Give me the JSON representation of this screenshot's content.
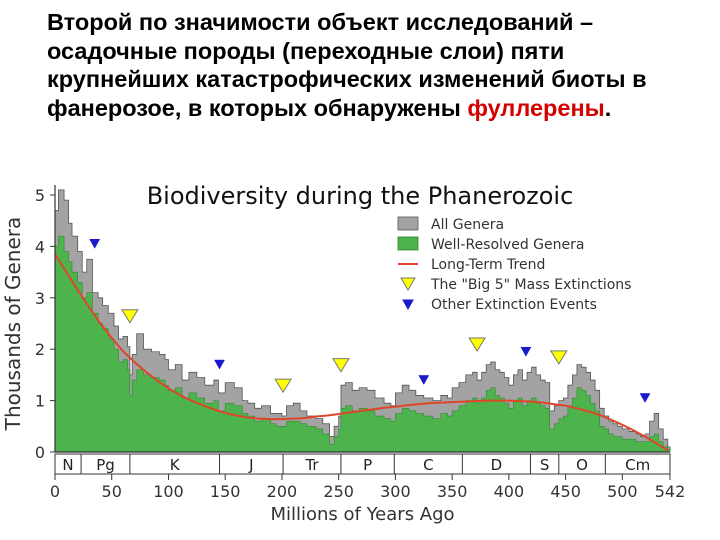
{
  "heading": {
    "text": "Второй по значимости объект исследований – осадочные породы (переходные  слои) пяти крупнейших катастрофических изменений биоты в фанерозое, в которых обнаружены ",
    "highlight": "фуллерены",
    "tail": "."
  },
  "colors": {
    "all_genera": "#a3a3a3",
    "well_resolved": "#4db34d",
    "trend": "#e0452a",
    "big5": "#ffff00",
    "other": "#1a1acc"
  },
  "chart_data": {
    "type": "area",
    "title": "Biodiversity during the Phanerozoic",
    "xlabel": "Millions of Years Ago",
    "ylabel": "Thousands of Genera",
    "xlim": [
      0,
      542
    ],
    "ylim": [
      0,
      5
    ],
    "x_ticks": [
      "0",
      "50",
      "100",
      "150",
      "200",
      "250",
      "300",
      "350",
      "400",
      "450",
      "500",
      "542"
    ],
    "y_ticks": [
      "0",
      "1",
      "2",
      "3",
      "4",
      "5"
    ],
    "legend": [
      {
        "key": "all",
        "label": "All Genera"
      },
      {
        "key": "well",
        "label": "Well-Resolved Genera"
      },
      {
        "key": "trend",
        "label": "Long-Term Trend"
      },
      {
        "key": "big5",
        "label": "The \"Big 5\" Mass Extinctions"
      },
      {
        "key": "other",
        "label": "Other Extinction Events"
      }
    ],
    "periods": [
      {
        "label": "N",
        "start": 0,
        "end": 23
      },
      {
        "label": "Pg",
        "start": 23,
        "end": 66
      },
      {
        "label": "K",
        "start": 66,
        "end": 145
      },
      {
        "label": "J",
        "start": 145,
        "end": 201
      },
      {
        "label": "Tr",
        "start": 201,
        "end": 252
      },
      {
        "label": "P",
        "start": 252,
        "end": 299
      },
      {
        "label": "C",
        "start": 299,
        "end": 359
      },
      {
        "label": "D",
        "start": 359,
        "end": 419
      },
      {
        "label": "S",
        "start": 419,
        "end": 444
      },
      {
        "label": "O",
        "start": 444,
        "end": 485
      },
      {
        "label": "Cm",
        "start": 485,
        "end": 542
      }
    ],
    "series": [
      {
        "name": "All Genera",
        "x": [
          0,
          3,
          8,
          12,
          15,
          20,
          24,
          28,
          33,
          38,
          42,
          47,
          52,
          56,
          60,
          64,
          66,
          68,
          72,
          78,
          85,
          92,
          97,
          100,
          106,
          112,
          118,
          125,
          132,
          140,
          144,
          150,
          158,
          165,
          170,
          176,
          182,
          190,
          195,
          200,
          204,
          210,
          216,
          222,
          230,
          236,
          242,
          246,
          250,
          252,
          256,
          262,
          268,
          275,
          282,
          290,
          296,
          300,
          306,
          312,
          318,
          325,
          333,
          340,
          346,
          350,
          356,
          362,
          368,
          372,
          376,
          380,
          384,
          388,
          392,
          396,
          400,
          404,
          408,
          412,
          416,
          420,
          424,
          428,
          432,
          436,
          440,
          444,
          448,
          452,
          456,
          460,
          464,
          468,
          472,
          476,
          480,
          484,
          488,
          492,
          496,
          500,
          506,
          512,
          516,
          520,
          524,
          528,
          532,
          536,
          540,
          542
        ],
        "y": [
          4.7,
          5.1,
          4.9,
          4.45,
          4.2,
          3.9,
          3.5,
          3.75,
          3.1,
          3.0,
          2.85,
          2.7,
          2.45,
          2.2,
          2.25,
          2.05,
          1.5,
          1.9,
          2.3,
          2.0,
          1.95,
          1.9,
          1.8,
          1.6,
          1.7,
          1.4,
          1.55,
          1.45,
          1.3,
          1.4,
          1.15,
          1.35,
          1.25,
          1.0,
          0.95,
          0.85,
          0.9,
          0.75,
          0.75,
          0.7,
          0.9,
          0.95,
          0.8,
          0.7,
          0.65,
          0.55,
          0.3,
          0.5,
          0.7,
          1.3,
          1.35,
          1.2,
          1.25,
          1.2,
          1.05,
          0.95,
          0.9,
          1.15,
          1.3,
          1.2,
          1.1,
          1.05,
          1.0,
          1.1,
          1.05,
          1.25,
          1.35,
          1.5,
          1.55,
          1.4,
          1.55,
          1.7,
          1.75,
          1.6,
          1.55,
          1.45,
          1.3,
          1.5,
          1.6,
          1.4,
          1.55,
          1.65,
          1.5,
          1.4,
          1.35,
          0.8,
          0.9,
          1.0,
          1.05,
          1.3,
          1.5,
          1.7,
          1.65,
          1.55,
          1.4,
          1.2,
          0.85,
          0.7,
          0.6,
          0.55,
          0.5,
          0.45,
          0.4,
          0.35,
          0.3,
          0.35,
          0.6,
          0.75,
          0.45,
          0.25,
          0.1,
          0.0
        ]
      },
      {
        "name": "Well-Resolved Genera",
        "x": [
          0,
          3,
          8,
          12,
          15,
          20,
          24,
          28,
          33,
          38,
          42,
          47,
          52,
          56,
          60,
          64,
          66,
          68,
          72,
          78,
          85,
          92,
          97,
          100,
          106,
          112,
          118,
          125,
          132,
          140,
          144,
          150,
          158,
          165,
          170,
          176,
          182,
          190,
          195,
          200,
          204,
          210,
          216,
          222,
          230,
          236,
          242,
          246,
          250,
          252,
          256,
          262,
          268,
          275,
          282,
          290,
          296,
          300,
          306,
          312,
          318,
          325,
          333,
          340,
          346,
          350,
          356,
          362,
          368,
          372,
          376,
          380,
          384,
          388,
          392,
          396,
          400,
          404,
          408,
          412,
          416,
          420,
          424,
          428,
          432,
          436,
          440,
          444,
          448,
          452,
          456,
          460,
          464,
          468,
          472,
          476,
          480,
          484,
          488,
          492,
          496,
          500,
          506,
          512,
          516,
          520,
          524,
          528,
          532,
          536,
          540,
          542
        ],
        "y": [
          4.0,
          4.2,
          3.9,
          3.7,
          3.5,
          3.3,
          3.0,
          3.1,
          2.7,
          2.5,
          2.4,
          2.2,
          2.0,
          1.75,
          1.8,
          1.6,
          1.1,
          1.4,
          1.6,
          1.5,
          1.45,
          1.4,
          1.3,
          1.2,
          1.25,
          1.05,
          1.15,
          1.05,
          0.95,
          1.0,
          0.8,
          0.95,
          0.9,
          0.75,
          0.7,
          0.6,
          0.65,
          0.55,
          0.5,
          0.5,
          0.6,
          0.6,
          0.55,
          0.5,
          0.45,
          0.35,
          0.15,
          0.3,
          0.45,
          0.85,
          0.9,
          0.8,
          0.85,
          0.8,
          0.7,
          0.65,
          0.6,
          0.75,
          0.85,
          0.8,
          0.75,
          0.7,
          0.65,
          0.75,
          0.7,
          0.8,
          0.9,
          1.0,
          1.05,
          0.95,
          1.05,
          1.2,
          1.25,
          1.1,
          1.05,
          0.95,
          0.85,
          1.0,
          1.05,
          0.9,
          1.0,
          1.05,
          0.95,
          0.9,
          0.85,
          0.45,
          0.55,
          0.65,
          0.7,
          0.9,
          1.05,
          1.25,
          1.2,
          1.1,
          0.95,
          0.8,
          0.5,
          0.45,
          0.35,
          0.3,
          0.3,
          0.25,
          0.25,
          0.2,
          0.2,
          0.2,
          0.3,
          0.35,
          0.2,
          0.1,
          0.05,
          0.0
        ]
      },
      {
        "name": "Long-Term Trend",
        "x": [
          0,
          10,
          20,
          30,
          40,
          50,
          60,
          70,
          80,
          90,
          100,
          110,
          120,
          130,
          140,
          150,
          160,
          170,
          180,
          190,
          200,
          210,
          220,
          230,
          240,
          250,
          260,
          270,
          280,
          290,
          300,
          310,
          320,
          330,
          340,
          350,
          360,
          370,
          380,
          390,
          400,
          410,
          420,
          430,
          440,
          450,
          460,
          470,
          480,
          490,
          500,
          510,
          520,
          530,
          540
        ],
        "y": [
          3.85,
          3.5,
          3.15,
          2.82,
          2.5,
          2.22,
          1.96,
          1.75,
          1.56,
          1.39,
          1.24,
          1.11,
          1.0,
          0.91,
          0.83,
          0.76,
          0.71,
          0.67,
          0.65,
          0.64,
          0.64,
          0.65,
          0.66,
          0.69,
          0.71,
          0.74,
          0.77,
          0.8,
          0.83,
          0.86,
          0.88,
          0.91,
          0.93,
          0.95,
          0.96,
          0.97,
          0.98,
          0.99,
          1.0,
          1.0,
          1.0,
          0.99,
          0.98,
          0.96,
          0.93,
          0.9,
          0.85,
          0.79,
          0.72,
          0.63,
          0.53,
          0.42,
          0.3,
          0.17,
          0.03
        ]
      }
    ],
    "big5_extinctions": [
      66,
      201,
      252,
      372,
      444
    ],
    "other_extinctions": [
      35,
      145,
      325,
      415,
      520
    ]
  }
}
